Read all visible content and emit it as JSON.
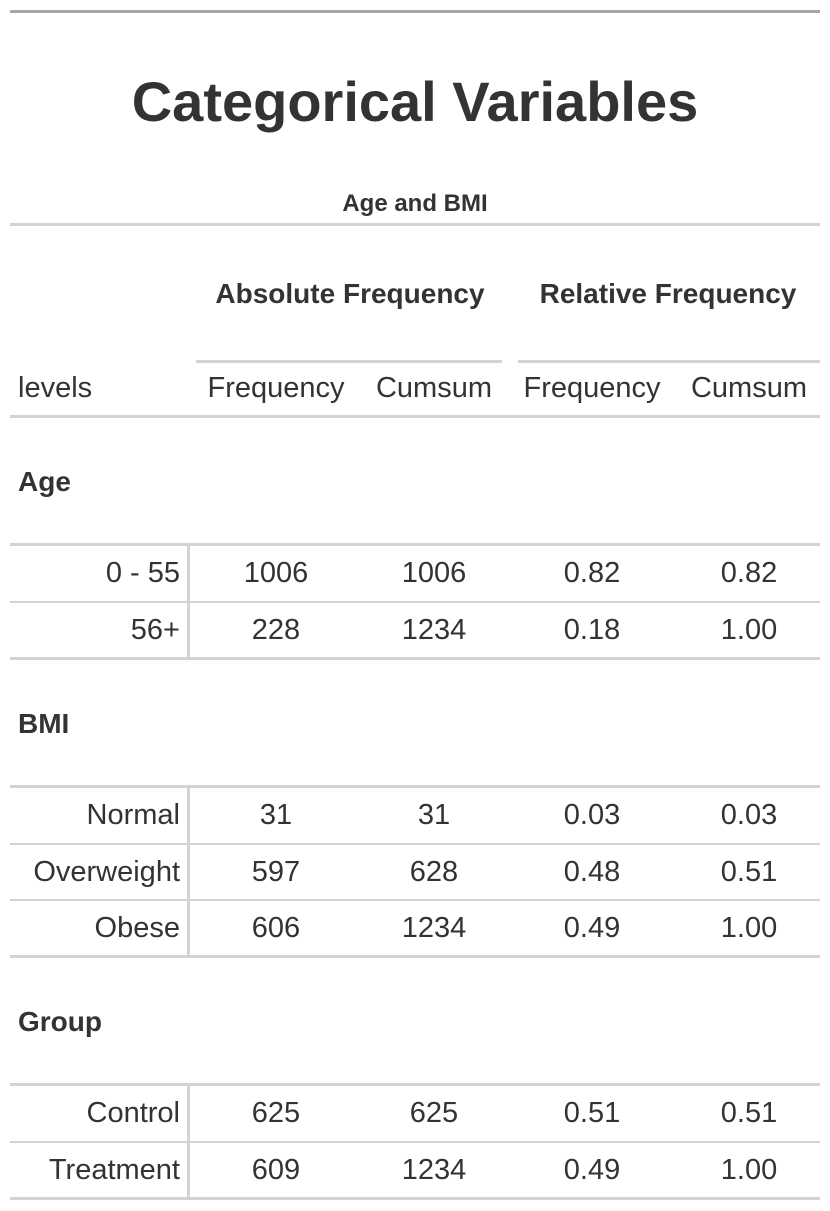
{
  "title": "Categorical Variables",
  "subtitle": "Age and BMI",
  "spanners": {
    "absolute": "Absolute Frequency",
    "relative": "Relative Frequency"
  },
  "columns": {
    "stub": "levels",
    "abs_freq": "Frequency",
    "abs_cumsum": "Cumsum",
    "rel_freq": "Frequency",
    "rel_cumsum": "Cumsum"
  },
  "groups": [
    {
      "label": "Age",
      "rows": [
        {
          "level": "0 - 55",
          "abs_freq": "1006",
          "abs_cumsum": "1006",
          "rel_freq": "0.82",
          "rel_cumsum": "0.82"
        },
        {
          "level": "56+",
          "abs_freq": "228",
          "abs_cumsum": "1234",
          "rel_freq": "0.18",
          "rel_cumsum": "1.00"
        }
      ]
    },
    {
      "label": "BMI",
      "rows": [
        {
          "level": "Normal",
          "abs_freq": "31",
          "abs_cumsum": "31",
          "rel_freq": "0.03",
          "rel_cumsum": "0.03"
        },
        {
          "level": "Overweight",
          "abs_freq": "597",
          "abs_cumsum": "628",
          "rel_freq": "0.48",
          "rel_cumsum": "0.51"
        },
        {
          "level": "Obese",
          "abs_freq": "606",
          "abs_cumsum": "1234",
          "rel_freq": "0.49",
          "rel_cumsum": "1.00"
        }
      ]
    },
    {
      "label": "Group",
      "rows": [
        {
          "level": "Control",
          "abs_freq": "625",
          "abs_cumsum": "625",
          "rel_freq": "0.51",
          "rel_cumsum": "0.51"
        },
        {
          "level": "Treatment",
          "abs_freq": "609",
          "abs_cumsum": "1234",
          "rel_freq": "0.49",
          "rel_cumsum": "1.00"
        }
      ]
    }
  ]
}
